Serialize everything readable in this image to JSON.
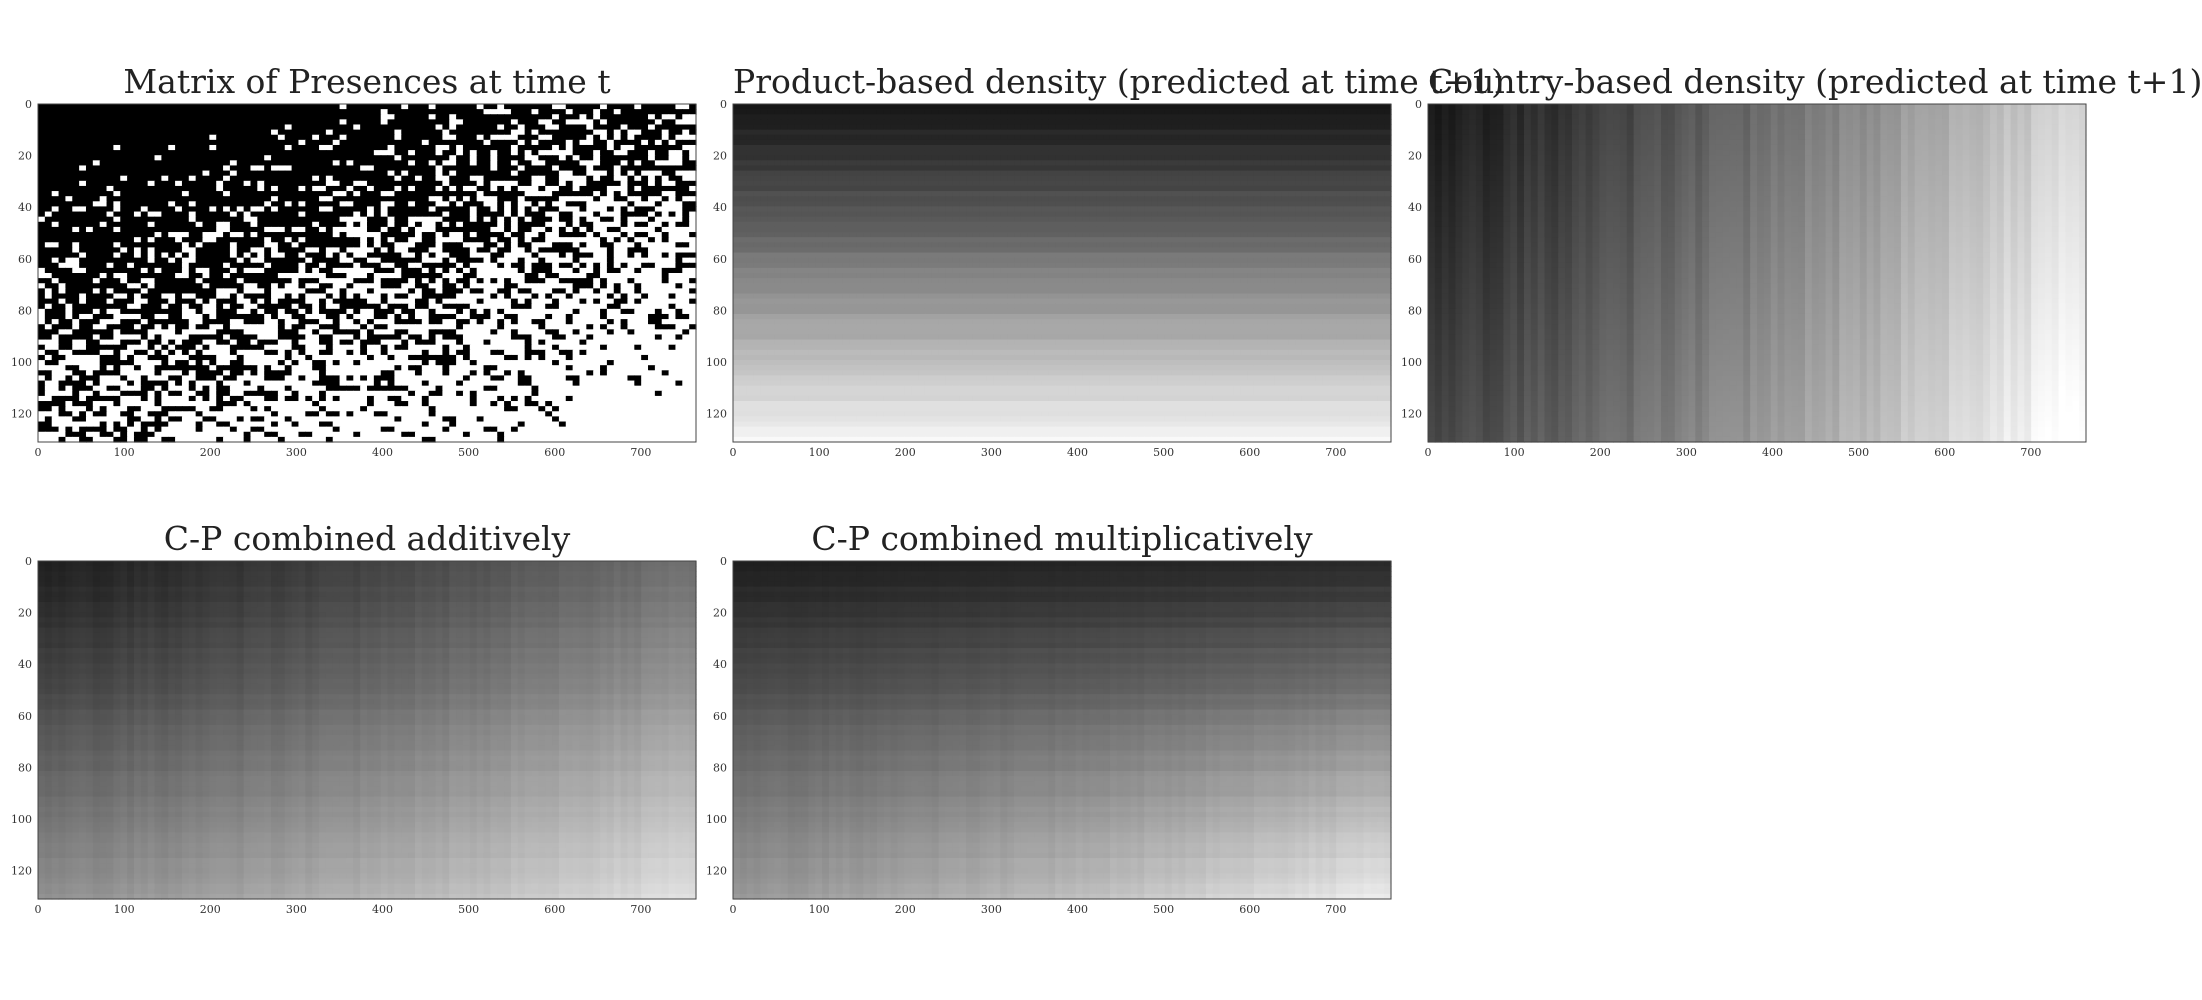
{
  "chart_data": [
    {
      "type": "heatmap",
      "title": "Matrix of Presences at time t",
      "pattern": "binary",
      "colormap": "gray",
      "xlim": [
        0,
        764
      ],
      "ylim": [
        131,
        0
      ],
      "xticks": [
        "0",
        "100",
        "200",
        "300",
        "400",
        "500",
        "600",
        "700"
      ],
      "yticks": [
        "0",
        "20",
        "40",
        "60",
        "80",
        "100",
        "120"
      ],
      "xlabel": "",
      "ylabel": ""
    },
    {
      "type": "heatmap",
      "title": "Product-based density (predicted at time t+1)",
      "pattern": "row-gradient",
      "colormap": "gray",
      "xlim": [
        0,
        764
      ],
      "ylim": [
        131,
        0
      ],
      "xticks": [
        "0",
        "100",
        "200",
        "300",
        "400",
        "500",
        "600",
        "700"
      ],
      "yticks": [
        "0",
        "20",
        "40",
        "60",
        "80",
        "100",
        "120"
      ],
      "xlabel": "",
      "ylabel": ""
    },
    {
      "type": "heatmap",
      "title": "Country-based density (predicted at time t+1)",
      "pattern": "column-gradient",
      "colormap": "gray",
      "xlim": [
        0,
        764
      ],
      "ylim": [
        131,
        0
      ],
      "xticks": [
        "0",
        "100",
        "200",
        "300",
        "400",
        "500",
        "600",
        "700"
      ],
      "yticks": [
        "0",
        "20",
        "40",
        "60",
        "80",
        "100",
        "120"
      ],
      "xlabel": "",
      "ylabel": ""
    },
    {
      "type": "heatmap",
      "title": "C-P combined additively",
      "pattern": "additive",
      "colormap": "gray",
      "xlim": [
        0,
        764
      ],
      "ylim": [
        131,
        0
      ],
      "xticks": [
        "0",
        "100",
        "200",
        "300",
        "400",
        "500",
        "600",
        "700"
      ],
      "yticks": [
        "0",
        "20",
        "40",
        "60",
        "80",
        "100",
        "120"
      ],
      "xlabel": "",
      "ylabel": ""
    },
    {
      "type": "heatmap",
      "title": "C-P combined multiplicatively",
      "pattern": "multiplicative",
      "colormap": "gray",
      "xlim": [
        0,
        764
      ],
      "ylim": [
        131,
        0
      ],
      "xticks": [
        "0",
        "100",
        "200",
        "300",
        "400",
        "500",
        "600",
        "700"
      ],
      "yticks": [
        "0",
        "20",
        "40",
        "60",
        "80",
        "100",
        "120"
      ],
      "xlabel": "",
      "ylabel": ""
    }
  ]
}
